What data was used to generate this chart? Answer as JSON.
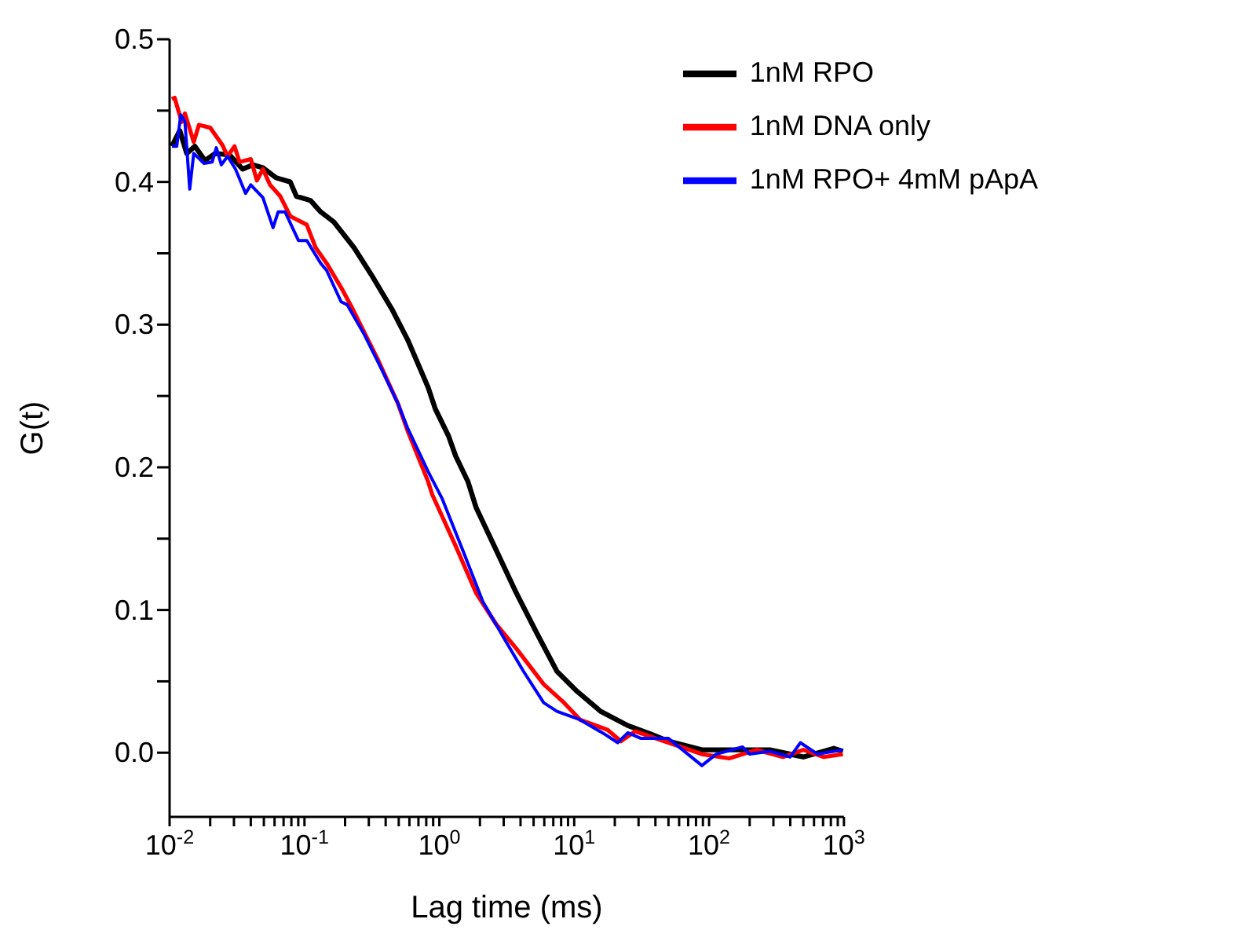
{
  "chart_data": {
    "type": "line",
    "xlabel": "Lag time (ms)",
    "ylabel": "G(t)",
    "log": "x",
    "grid": false,
    "legend": "top right",
    "marker": "none",
    "line_style": "solid",
    "xlim": [
      0.01,
      1000
    ],
    "ylim": [
      -0.045,
      0.5
    ],
    "xticks": [
      {
        "value": 0.01,
        "label": "10$^{-2}$"
      },
      {
        "value": 0.02,
        "label": null
      },
      {
        "value": 0.03,
        "label": null
      },
      {
        "value": 0.04,
        "label": null
      },
      {
        "value": 0.05,
        "label": null
      },
      {
        "value": 0.06,
        "label": null
      },
      {
        "value": 0.07,
        "label": null
      },
      {
        "value": 0.08,
        "label": null
      },
      {
        "value": 0.09,
        "label": null
      },
      {
        "value": 0.1,
        "label": "10$^{-1}$"
      },
      {
        "value": 0.2,
        "label": null
      },
      {
        "value": 0.3,
        "label": null
      },
      {
        "value": 0.4,
        "label": null
      },
      {
        "value": 0.5,
        "label": null
      },
      {
        "value": 0.6,
        "label": null
      },
      {
        "value": 0.7,
        "label": null
      },
      {
        "value": 0.8,
        "label": null
      },
      {
        "value": 0.9,
        "label": null
      },
      {
        "value": 1,
        "label": "10$^{0}$"
      },
      {
        "value": 2,
        "label": null
      },
      {
        "value": 3,
        "label": null
      },
      {
        "value": 4,
        "label": null
      },
      {
        "value": 5,
        "label": null
      },
      {
        "value": 6,
        "label": null
      },
      {
        "value": 7,
        "label": null
      },
      {
        "value": 8,
        "label": null
      },
      {
        "value": 9,
        "label": null
      },
      {
        "value": 10,
        "label": "10$^{1}$"
      },
      {
        "value": 20,
        "label": null
      },
      {
        "value": 30,
        "label": null
      },
      {
        "value": 40,
        "label": null
      },
      {
        "value": 50,
        "label": null
      },
      {
        "value": 60,
        "label": null
      },
      {
        "value": 70,
        "label": null
      },
      {
        "value": 80,
        "label": null
      },
      {
        "value": 90,
        "label": null
      },
      {
        "value": 100,
        "label": "10$^{2}$"
      },
      {
        "value": 200,
        "label": null
      },
      {
        "value": 300,
        "label": null
      },
      {
        "value": 400,
        "label": null
      },
      {
        "value": 500,
        "label": null
      },
      {
        "value": 600,
        "label": null
      },
      {
        "value": 700,
        "label": null
      },
      {
        "value": 800,
        "label": null
      },
      {
        "value": 900,
        "label": null
      },
      {
        "value": 1000,
        "label": "10$^{3}$"
      }
    ],
    "yticks": [
      {
        "value": 0,
        "label": "0.0"
      },
      {
        "value": 0.05,
        "label": null
      },
      {
        "value": 0.1,
        "label": "0.1"
      },
      {
        "value": 0.15,
        "label": null
      },
      {
        "value": 0.2,
        "label": "0.2"
      },
      {
        "value": 0.25,
        "label": null
      },
      {
        "value": 0.3,
        "label": "0.3"
      },
      {
        "value": 0.35,
        "label": null
      },
      {
        "value": 0.4,
        "label": "0.4"
      },
      {
        "value": 0.45,
        "label": null
      },
      {
        "value": 0.5,
        "label": "0.5"
      }
    ],
    "series": [
      {
        "name": "1nM RPO",
        "color": "#000000",
        "x": [
          0.0104,
          0.0119,
          0.0134,
          0.0154,
          0.0183,
          0.0218,
          0.0278,
          0.0348,
          0.0414,
          0.0492,
          0.0615,
          0.0785,
          0.0871,
          0.111,
          0.132,
          0.165,
          0.233,
          0.313,
          0.444,
          0.585,
          0.826,
          0.933,
          1.17,
          1.32,
          1.63,
          1.87,
          2.64,
          3.72,
          5.27,
          7.45,
          10.5,
          15.7,
          25.0,
          37.2,
          50.0,
          88.5,
          160,
          282,
          500,
          841,
          982
        ],
        "values": [
          0.425,
          0.436,
          0.42,
          0.425,
          0.415,
          0.42,
          0.419,
          0.409,
          0.412,
          0.41,
          0.403,
          0.4,
          0.39,
          0.387,
          0.379,
          0.372,
          0.354,
          0.335,
          0.311,
          0.289,
          0.256,
          0.241,
          0.222,
          0.208,
          0.19,
          0.172,
          0.142,
          0.112,
          0.084,
          0.057,
          0.043,
          0.029,
          0.019,
          0.013,
          0.008,
          0.002,
          0.002,
          0.002,
          -0.003,
          0.003,
          0.001
        ]
      },
      {
        "name": "1nM DNA only",
        "color": "#ff0000",
        "x": [
          0.0104,
          0.0109,
          0.0123,
          0.013,
          0.0151,
          0.0165,
          0.02,
          0.0246,
          0.0269,
          0.0303,
          0.033,
          0.04,
          0.0444,
          0.0492,
          0.0555,
          0.0661,
          0.0785,
          0.104,
          0.121,
          0.146,
          0.187,
          0.222,
          0.348,
          0.492,
          0.585,
          0.826,
          0.885,
          1.32,
          1.87,
          2.64,
          3.72,
          5.94,
          8.41,
          11.1,
          17.7,
          22.2,
          28.3,
          50.0,
          88.5,
          141,
          225,
          354,
          500,
          708,
          982
        ],
        "values": [
          0.458,
          0.459,
          0.442,
          0.448,
          0.428,
          0.44,
          0.438,
          0.426,
          0.418,
          0.425,
          0.414,
          0.416,
          0.401,
          0.409,
          0.398,
          0.39,
          0.376,
          0.37,
          0.354,
          0.343,
          0.326,
          0.313,
          0.276,
          0.245,
          0.225,
          0.19,
          0.181,
          0.145,
          0.112,
          0.09,
          0.073,
          0.048,
          0.035,
          0.023,
          0.016,
          0.008,
          0.015,
          0.007,
          -0.001,
          -0.004,
          0.002,
          -0.003,
          0.002,
          -0.003,
          -0.001
        ]
      },
      {
        "name": "1nM RPO+ 4mM pApA",
        "color": "#0000ff",
        "x": [
          0.0104,
          0.0113,
          0.0121,
          0.013,
          0.0141,
          0.0151,
          0.018,
          0.0207,
          0.0222,
          0.0242,
          0.0269,
          0.0308,
          0.0366,
          0.04,
          0.0492,
          0.0585,
          0.0638,
          0.0719,
          0.0902,
          0.104,
          0.132,
          0.146,
          0.187,
          0.207,
          0.278,
          0.372,
          0.492,
          0.585,
          0.826,
          1.05,
          1.49,
          2.1,
          2.98,
          4.21,
          5.94,
          7.45,
          11.1,
          16.8,
          21.0,
          25.0,
          31.3,
          50.0,
          88.5,
          113,
          177,
          200,
          282,
          400,
          475,
          638,
          982
        ],
        "values": [
          0.425,
          0.425,
          0.447,
          0.442,
          0.395,
          0.42,
          0.413,
          0.414,
          0.424,
          0.412,
          0.418,
          0.409,
          0.392,
          0.398,
          0.389,
          0.368,
          0.379,
          0.379,
          0.359,
          0.359,
          0.343,
          0.338,
          0.316,
          0.314,
          0.293,
          0.269,
          0.245,
          0.227,
          0.197,
          0.178,
          0.142,
          0.106,
          0.081,
          0.057,
          0.035,
          0.029,
          0.023,
          0.013,
          0.007,
          0.014,
          0.01,
          0.01,
          -0.009,
          -0.001,
          0.004,
          -0.001,
          0.001,
          -0.003,
          0.007,
          -0.001,
          0.002
        ]
      }
    ]
  }
}
